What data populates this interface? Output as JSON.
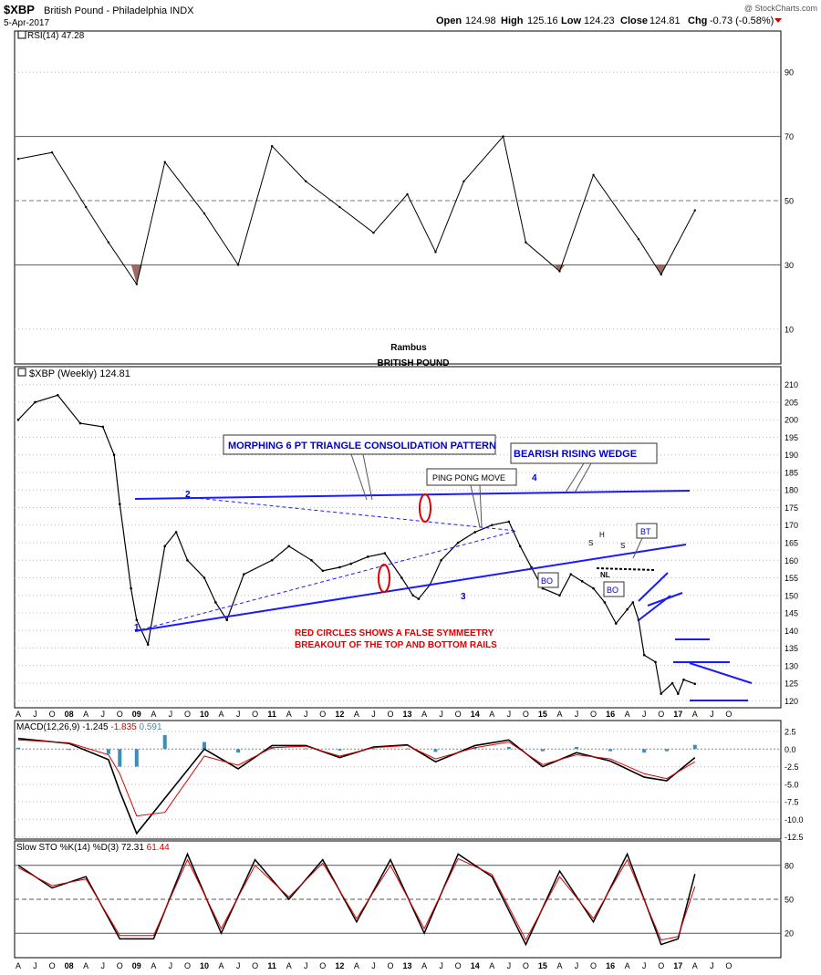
{
  "header": {
    "symbol": "$XBP",
    "name": "British Pound - Philadelphia INDX",
    "date": "5-Apr-2017",
    "open_label": "Open",
    "open": "124.98",
    "high_label": "High",
    "high": "125.16",
    "low_label": "Low",
    "low": "124.23",
    "close_label": "Close",
    "close": "124.81",
    "chg_label": "Chg",
    "chg": "-0.73 (-0.58%)",
    "watermark": "@ StockCharts.com"
  },
  "colors": {
    "price": "#000000",
    "annotation": "#0000cc",
    "false_breakout": "#dd0000",
    "rsi_fill": "#9b6b63",
    "macd_hist": "#3a8fb7",
    "signal": "#dd0000"
  },
  "chart_data": [
    {
      "type": "line",
      "panel": "rsi",
      "legend": "RSI(14) 47.28",
      "ylim": [
        0,
        100
      ],
      "yticks": [
        10,
        30,
        50,
        70,
        90
      ],
      "overbought": 70,
      "oversold": 30,
      "footer_note": "Rambus",
      "footer_title": "BRITISH POUND",
      "x": [
        "2007-04",
        "2007-10",
        "2008-04",
        "2008-08",
        "2009-01",
        "2009-06",
        "2010-01",
        "2010-07",
        "2011-01",
        "2011-07",
        "2012-01",
        "2012-07",
        "2013-01",
        "2013-06",
        "2013-11",
        "2014-06",
        "2014-10",
        "2015-04",
        "2015-10",
        "2016-06",
        "2016-10",
        "2017-04"
      ],
      "values": [
        63,
        65,
        48,
        37,
        24,
        62,
        46,
        30,
        67,
        56,
        48,
        40,
        52,
        34,
        56,
        70,
        37,
        28,
        58,
        38,
        27,
        47
      ]
    },
    {
      "type": "line",
      "panel": "price",
      "legend": "$XBP (Weekly) 124.81",
      "ylim": [
        118,
        212
      ],
      "yticks": [
        120,
        125,
        130,
        135,
        140,
        145,
        150,
        155,
        160,
        165,
        170,
        175,
        180,
        185,
        190,
        195,
        200,
        205,
        210
      ],
      "x": [
        "2007-04",
        "2007-07",
        "2007-11",
        "2008-03",
        "2008-07",
        "2008-09",
        "2008-10",
        "2008-12",
        "2009-01",
        "2009-03",
        "2009-06",
        "2009-08",
        "2009-10",
        "2010-01",
        "2010-03",
        "2010-05",
        "2010-08",
        "2011-01",
        "2011-04",
        "2011-08",
        "2011-10",
        "2012-01",
        "2012-03",
        "2012-06",
        "2012-09",
        "2012-12",
        "2013-02",
        "2013-03",
        "2013-05",
        "2013-07",
        "2013-10",
        "2014-01",
        "2014-04",
        "2014-07",
        "2014-09",
        "2014-11",
        "2015-01",
        "2015-04",
        "2015-06",
        "2015-08",
        "2015-10",
        "2015-12",
        "2016-02",
        "2016-04",
        "2016-05",
        "2016-06",
        "2016-07",
        "2016-09",
        "2016-10",
        "2016-12",
        "2017-01",
        "2017-02",
        "2017-04"
      ],
      "values": [
        200,
        205,
        207,
        199,
        198,
        190,
        176,
        152,
        143,
        136,
        164,
        168,
        160,
        155,
        148,
        143,
        156,
        160,
        164,
        160,
        157,
        158,
        159,
        161,
        162,
        155,
        150,
        149,
        153,
        160,
        165,
        168,
        170,
        171,
        164,
        158,
        152,
        150,
        156,
        154,
        152,
        148,
        142,
        146,
        148,
        143,
        133,
        131,
        122,
        125,
        122,
        126,
        124.81
      ]
    },
    {
      "type": "line",
      "panel": "macd",
      "legend_name": "MACD(12,26,9)",
      "legend_values": [
        "-1.245",
        "-1.835",
        "0.591"
      ],
      "ylim": [
        -12.8,
        3.8
      ],
      "yticks": [
        "2.5",
        "0.0",
        "-2.5",
        "-5.0",
        "-7.5",
        "-10.0",
        "-12.5"
      ],
      "x": [
        "2007-04",
        "2008-01",
        "2008-08",
        "2008-10",
        "2009-01",
        "2009-06",
        "2010-01",
        "2010-07",
        "2011-01",
        "2011-07",
        "2012-01",
        "2012-07",
        "2013-01",
        "2013-06",
        "2014-01",
        "2014-07",
        "2015-01",
        "2015-07",
        "2016-01",
        "2016-07",
        "2016-11",
        "2017-04"
      ],
      "series": [
        {
          "values": [
            1.5,
            0.8,
            -1.5,
            -6,
            -12,
            -7,
            0,
            -2.8,
            0.5,
            0.5,
            -1.2,
            0.3,
            0.6,
            -1.8,
            0.5,
            1.3,
            -2.5,
            -0.5,
            -1.7,
            -4,
            -4.5,
            -1.2
          ]
        },
        {
          "values": [
            1.3,
            0.9,
            -0.8,
            -3.5,
            -9.5,
            -9,
            -1,
            -2.3,
            0.2,
            0.4,
            -1.0,
            0.2,
            0.5,
            -1.4,
            0.2,
            1.0,
            -2.2,
            -0.8,
            -1.4,
            -3.5,
            -4.2,
            -1.8
          ]
        }
      ]
    },
    {
      "type": "line",
      "panel": "stochastic",
      "legend_name": "Slow STO %K(14) %D(3)",
      "legend_values": [
        "72.31",
        "61.44"
      ],
      "ylim": [
        0,
        100
      ],
      "yticks": [
        "20",
        "50",
        "80"
      ],
      "overbought": 80,
      "oversold": 20,
      "x": [
        "2007-04",
        "2007-10",
        "2008-04",
        "2008-10",
        "2009-04",
        "2009-10",
        "2010-04",
        "2010-10",
        "2011-04",
        "2011-10",
        "2012-04",
        "2012-10",
        "2013-04",
        "2013-10",
        "2014-04",
        "2014-10",
        "2015-04",
        "2015-10",
        "2016-04",
        "2016-10",
        "2017-01",
        "2017-04"
      ],
      "series": [
        {
          "values": [
            80,
            60,
            70,
            15,
            15,
            90,
            20,
            85,
            50,
            85,
            30,
            85,
            20,
            90,
            70,
            10,
            75,
            30,
            90,
            10,
            15,
            72.31
          ]
        },
        {
          "values": [
            78,
            62,
            68,
            18,
            18,
            85,
            24,
            80,
            52,
            82,
            33,
            80,
            24,
            86,
            72,
            14,
            70,
            33,
            85,
            14,
            17,
            61.44
          ]
        }
      ]
    }
  ],
  "x_axis_labels": [
    "A",
    "J",
    "O",
    "08",
    "A",
    "J",
    "O",
    "09",
    "A",
    "J",
    "O",
    "10",
    "A",
    "J",
    "O",
    "11",
    "A",
    "J",
    "O",
    "12",
    "A",
    "J",
    "O",
    "13",
    "A",
    "J",
    "O",
    "14",
    "A",
    "J",
    "O",
    "15",
    "A",
    "J",
    "O",
    "16",
    "A",
    "J",
    "O",
    "17",
    "A",
    "J",
    "O"
  ],
  "annotations": {
    "triangle_box": "MORPHING 6 PT TRIANGLE CONSOLIDATION PATTERN",
    "wedge_box": "BEARISH RISING WEDGE",
    "ping_pong_box": "PING PONG MOVE",
    "red_note_line1": "RED CIRCLES SHOWS A FALSE SYMMEETRY",
    "red_note_line2": "BREAKOUT OF THE TOP AND BOTTOM RAILS",
    "point_1": "1",
    "point_2": "2",
    "point_3": "3",
    "point_4": "4",
    "bo_1": "BO",
    "bo_2": "BO",
    "bt": "BT",
    "s_left": "S",
    "h": "H",
    "s_right": "S",
    "nl": "NL"
  }
}
